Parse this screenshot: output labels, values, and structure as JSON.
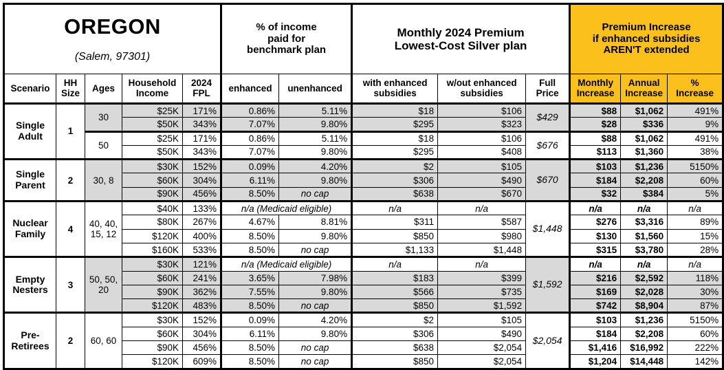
{
  "title": "OREGON",
  "subtitle": "(Salem, 97301)",
  "sections": {
    "benchmark": "% of income\npaid for\nbenchmark plan",
    "premium": "Monthly 2024 Premium\nLowest-Cost Silver plan",
    "increase": "Premium Increase\nif enhanced subsidies\nAREN'T extended"
  },
  "columns": {
    "scenario": "Scenario",
    "hh_size": "HH\nSize",
    "ages": "Ages",
    "income": "Household\nIncome",
    "fpl": "2024\nFPL",
    "enhanced": "enhanced",
    "unenhanced": "unenhanced",
    "with_sub": "with enhanced\nsubsidies",
    "wout_sub": "w/out enhanced\nsubsidies",
    "full_price": "Full\nPrice",
    "monthly": "Monthly\nIncrease",
    "annual": "Annual\nIncrease",
    "pct": "%\nIncrease"
  },
  "labels": {
    "na": "n/a",
    "no_cap": "no cap",
    "medicaid": "n/a (Medicaid eligible)"
  },
  "colors": {
    "accent_orange": "#FCC01C",
    "shade_gray": "#D9D9D9"
  },
  "groups": [
    {
      "scenario": "Single\nAdult",
      "hh_size": "1",
      "subgroups": [
        {
          "ages": "30",
          "shaded": true,
          "full_price": "$429",
          "rows": [
            {
              "income": "$25K",
              "fpl": "171%",
              "enhanced": "0.86%",
              "unenhanced": "5.11%",
              "with_sub": "$18",
              "wout_sub": "$106",
              "monthly": "$88",
              "annual": "$1,062",
              "pct_increase": "491%"
            },
            {
              "income": "$50K",
              "fpl": "343%",
              "enhanced": "7.07%",
              "unenhanced": "9.80%",
              "with_sub": "$295",
              "wout_sub": "$323",
              "monthly": "$28",
              "annual": "$336",
              "pct_increase": "9%"
            }
          ]
        },
        {
          "ages": "50",
          "shaded": false,
          "full_price": "$676",
          "rows": [
            {
              "income": "$25K",
              "fpl": "171%",
              "enhanced": "0.86%",
              "unenhanced": "5.11%",
              "with_sub": "$18",
              "wout_sub": "$106",
              "monthly": "$88",
              "annual": "$1,062",
              "pct_increase": "491%"
            },
            {
              "income": "$50K",
              "fpl": "343%",
              "enhanced": "7.07%",
              "unenhanced": "9.80%",
              "with_sub": "$295",
              "wout_sub": "$408",
              "monthly": "$113",
              "annual": "$1,360",
              "pct_increase": "38%"
            }
          ]
        }
      ]
    },
    {
      "scenario": "Single\nParent",
      "hh_size": "2",
      "subgroups": [
        {
          "ages": "30, 8",
          "shaded": true,
          "full_price": "$670",
          "rows": [
            {
              "income": "$30K",
              "fpl": "152%",
              "enhanced": "0.09%",
              "unenhanced": "4.20%",
              "with_sub": "$2",
              "wout_sub": "$105",
              "monthly": "$103",
              "annual": "$1,236",
              "pct_increase": "5150%"
            },
            {
              "income": "$60K",
              "fpl": "304%",
              "enhanced": "6.11%",
              "unenhanced": "9.80%",
              "with_sub": "$306",
              "wout_sub": "$490",
              "monthly": "$184",
              "annual": "$2,208",
              "pct_increase": "60%"
            },
            {
              "income": "$90K",
              "fpl": "456%",
              "enhanced": "8.50%",
              "unenhanced": "no cap",
              "with_sub": "$638",
              "wout_sub": "$670",
              "monthly": "$32",
              "annual": "$384",
              "pct_increase": "5%"
            }
          ]
        }
      ]
    },
    {
      "scenario": "Nuclear\nFamily",
      "hh_size": "4",
      "subgroups": [
        {
          "ages": "40, 40,\n15, 12",
          "shaded": false,
          "full_price": "$1,448",
          "rows": [
            {
              "income": "$40K",
              "fpl": "133%",
              "medicaid": true,
              "with_sub": "n/a",
              "wout_sub": "n/a",
              "monthly": "n/a",
              "annual": "n/a",
              "pct_increase": "n/a"
            },
            {
              "income": "$80K",
              "fpl": "267%",
              "enhanced": "4.67%",
              "unenhanced": "8.81%",
              "with_sub": "$311",
              "wout_sub": "$587",
              "monthly": "$276",
              "annual": "$3,316",
              "pct_increase": "89%"
            },
            {
              "income": "$120K",
              "fpl": "400%",
              "enhanced": "8.50%",
              "unenhanced": "9.80%",
              "with_sub": "$850",
              "wout_sub": "$980",
              "monthly": "$130",
              "annual": "$1,560",
              "pct_increase": "15%"
            },
            {
              "income": "$160K",
              "fpl": "533%",
              "enhanced": "8.50%",
              "unenhanced": "no cap",
              "with_sub": "$1,133",
              "wout_sub": "$1,448",
              "monthly": "$315",
              "annual": "$3,780",
              "pct_increase": "28%"
            }
          ]
        }
      ]
    },
    {
      "scenario": "Empty\nNesters",
      "hh_size": "3",
      "subgroups": [
        {
          "ages": "50, 50,\n20",
          "shaded": true,
          "full_price": "$1,592",
          "rows": [
            {
              "income": "$30K",
              "fpl": "121%",
              "medicaid": true,
              "with_sub": "n/a",
              "wout_sub": "n/a",
              "monthly": "n/a",
              "annual": "n/a",
              "pct_increase": "n/a"
            },
            {
              "income": "$60K",
              "fpl": "241%",
              "enhanced": "3.65%",
              "unenhanced": "7.98%",
              "with_sub": "$183",
              "wout_sub": "$399",
              "monthly": "$216",
              "annual": "$2,592",
              "pct_increase": "118%"
            },
            {
              "income": "$90K",
              "fpl": "362%",
              "enhanced": "7.55%",
              "unenhanced": "9.80%",
              "with_sub": "$566",
              "wout_sub": "$735",
              "monthly": "$169",
              "annual": "$2,028",
              "pct_increase": "30%"
            },
            {
              "income": "$120K",
              "fpl": "483%",
              "enhanced": "8.50%",
              "unenhanced": "no cap",
              "with_sub": "$850",
              "wout_sub": "$1,592",
              "monthly": "$742",
              "annual": "$8,904",
              "pct_increase": "87%"
            }
          ]
        }
      ]
    },
    {
      "scenario": "Pre-\nRetirees",
      "hh_size": "2",
      "subgroups": [
        {
          "ages": "60, 60",
          "shaded": false,
          "full_price": "$2,054",
          "rows": [
            {
              "income": "$30K",
              "fpl": "152%",
              "enhanced": "0.09%",
              "unenhanced": "4.20%",
              "with_sub": "$2",
              "wout_sub": "$105",
              "monthly": "$103",
              "annual": "$1,236",
              "pct_increase": "5150%"
            },
            {
              "income": "$60K",
              "fpl": "304%",
              "enhanced": "6.11%",
              "unenhanced": "9.80%",
              "with_sub": "$306",
              "wout_sub": "$490",
              "monthly": "$184",
              "annual": "$2,208",
              "pct_increase": "60%"
            },
            {
              "income": "$90K",
              "fpl": "456%",
              "enhanced": "8.50%",
              "unenhanced": "no cap",
              "with_sub": "$638",
              "wout_sub": "$2,054",
              "monthly": "$1,416",
              "annual": "$16,992",
              "pct_increase": "222%"
            },
            {
              "income": "$120K",
              "fpl": "609%",
              "enhanced": "8.50%",
              "unenhanced": "no cap",
              "with_sub": "$850",
              "wout_sub": "$2,054",
              "monthly": "$1,204",
              "annual": "$14,448",
              "pct_increase": "142%"
            }
          ]
        }
      ]
    }
  ]
}
